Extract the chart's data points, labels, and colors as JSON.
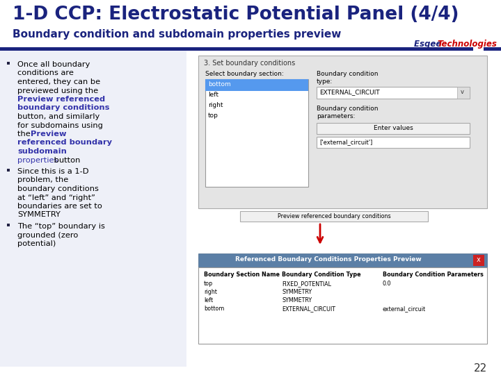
{
  "title": "1-D CCP: Electrostatic Potential Panel (4/4)",
  "subtitle": "Boundary condition and subdomain properties preview",
  "bg_color": "#ffffff",
  "title_color": "#1a237e",
  "subtitle_color": "#1a237e",
  "header_bar_color": "#1a237e",
  "esgee_color": "#1a237e",
  "tech_color": "#cc0000",
  "highlight_color": "#3333aa",
  "page_number": "22",
  "left_bg_color": "#eef0f8",
  "bullet_color": "#222244"
}
